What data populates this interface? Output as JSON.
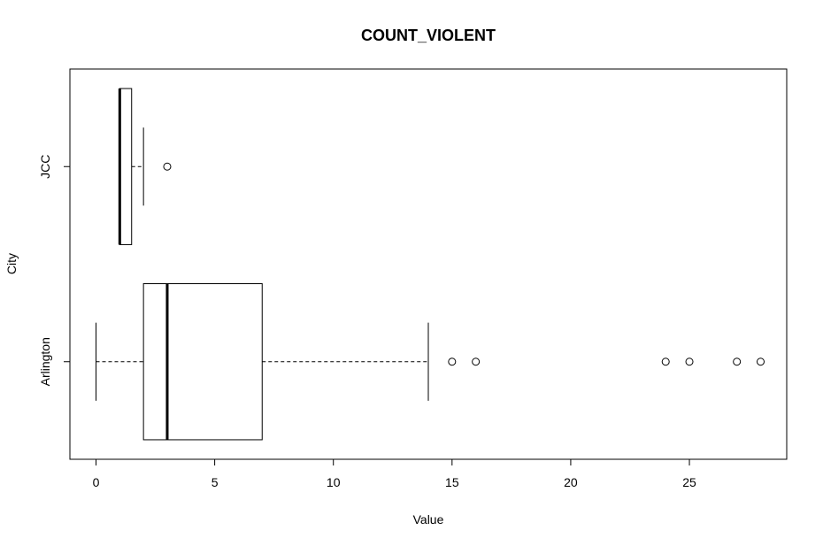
{
  "chart_data": {
    "type": "boxplot",
    "orientation": "horizontal",
    "title": "COUNT_VIOLENT",
    "xlabel": "Value",
    "ylabel": "City",
    "xlim": [
      -1.1,
      29.1
    ],
    "x_ticks": [
      0,
      5,
      10,
      15,
      20,
      25
    ],
    "categories": [
      "Arlington",
      "JCC"
    ],
    "series": [
      {
        "name": "Arlington",
        "whisker_low": 0,
        "q1": 2,
        "median": 3,
        "q3": 7,
        "whisker_high": 14,
        "outliers": [
          15,
          16,
          24,
          25,
          27,
          28
        ]
      },
      {
        "name": "JCC",
        "whisker_low": 1,
        "q1": 1,
        "median": 1,
        "q3": 1.5,
        "whisker_high": 2,
        "outliers": [
          3
        ]
      }
    ],
    "grid": false,
    "legend": "none"
  }
}
